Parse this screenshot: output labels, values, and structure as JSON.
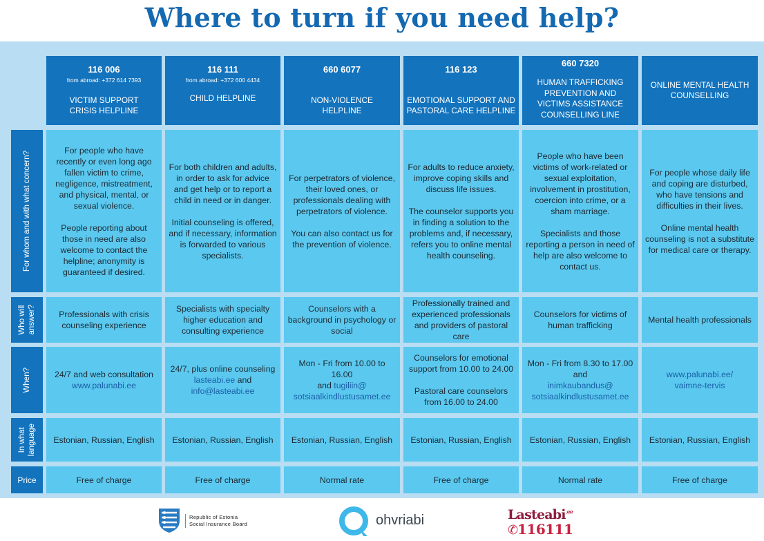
{
  "title": "Where to turn if you need help?",
  "colors": {
    "title": "#1469b1",
    "header_bg": "#1373bd",
    "cell_bg": "#5bc8ef",
    "panel_bg": "#b9ddf2",
    "link": "#1a5fa6"
  },
  "row_labels": {
    "whom": "For whom and with what concern?",
    "who": "Who will\nanswer?",
    "when": "When?",
    "language": "In what\nlanguage",
    "price": "Price"
  },
  "helplines": [
    {
      "number": "116 006",
      "abroad": "from abroad: +372 614 7393",
      "name": "VICTIM SUPPORT\nCRISIS HELPLINE",
      "whom_p1": "For people who have recently or even long ago fallen victim to crime, negligence, mistreatment, and physical, mental, or sexual violence.",
      "whom_p2": "People reporting about those in need are also welcome to contact the helpline; anonymity is guaranteed if desired.",
      "who": "Professionals with crisis counseling experience",
      "when_text": "24/7 and web consultation",
      "when_link": "www.palunabi.ee",
      "language": "Estonian, Russian, English",
      "price": "Free of charge"
    },
    {
      "number": "116 111",
      "abroad": "from abroad: +372 600 4434",
      "name": "CHILD HELPLINE",
      "whom_p1": "For both children and adults, in order to ask for advice and get help or to report a child in need or in danger.",
      "whom_p2": "Initial counseling is offered, and if necessary, information is forwarded to various specialists.",
      "who": "Specialists with specialty higher education and consulting experience",
      "when_text": "24/7, plus online counseling",
      "when_link1": "lasteabi.ee",
      "when_and": " and",
      "when_link2": "info@lasteabi.ee",
      "language": "Estonian, Russian, English",
      "price": "Free of charge"
    },
    {
      "number": "660 6077",
      "name": "NON-VIOLENCE\nHELPLINE",
      "whom_p1": "For perpetrators of violence, their loved ones, or professionals dealing with perpetrators of violence.",
      "whom_p2": "You can also contact us for the prevention of violence.",
      "who": "Counselors with a background in psychology or social",
      "when_text": "Mon - Fri from 10.00 to 16.00",
      "when_and": "and ",
      "when_link1": "tugiliin@",
      "when_link2": "sotsiaalkindlustusamet.ee",
      "language": "Estonian, Russian, English",
      "price": "Normal rate"
    },
    {
      "number": "116 123",
      "name": "EMOTIONAL SUPPORT AND\nPASTORAL CARE HELPLINE",
      "whom_p1": "For adults to reduce anxiety, improve coping skills and discuss life issues.",
      "whom_p2": "The counselor supports you in finding a solution to the problems and, if necessary, refers you to online mental health counseling.",
      "who": "Professionally trained and experienced professionals and providers of pastoral care",
      "when_p1": "Counselors for emotional support from 10.00 to 24.00",
      "when_p2": "Pastoral care counselors from 16.00 to 24.00",
      "language": "Estonian, Russian, English",
      "price": "Free of charge"
    },
    {
      "number": "660 7320",
      "name": "HUMAN TRAFFICKING\nPREVENTION AND\nVICTIMS ASSISTANCE\nCOUNSELLING LINE",
      "whom_p1": "People who have been victims of work-related or sexual exploitation, involvement in prostitution, coercion into crime, or a sham marriage.",
      "whom_p2": "Specialists and those reporting a person in need of help are also welcome to contact us.",
      "who": "Counselors for victims of human trafficking",
      "when_text": "Mon - Fri from 8.30 to 17.00\nand",
      "when_link1": "inimkaubandus@",
      "when_link2": "sotsiaalkindlustusamet.ee",
      "language": "Estonian, Russian, English",
      "price": "Normal rate"
    },
    {
      "name": "ONLINE MENTAL HEALTH\nCOUNSELLING",
      "whom_p1": "For people whose daily life and coping are disturbed, who have tensions and difficulties in their lives.",
      "whom_p2": "Online mental health counseling is not a substitute for medical care or therapy.",
      "who": "Mental health professionals",
      "when_link1": "www.palunabi.ee/",
      "when_link2": "vaimne-tervis",
      "language": "Estonian, Russian, English",
      "price": "Free of charge"
    }
  ],
  "footer": {
    "sib_logo_text": "Republic of Estonia\nSocial Insurance Board",
    "ohvriabi": "ohvriabi",
    "lasteabi_word": "Lasteabi",
    "lasteabi_tld": ".ee",
    "lasteabi_number": "116111"
  }
}
